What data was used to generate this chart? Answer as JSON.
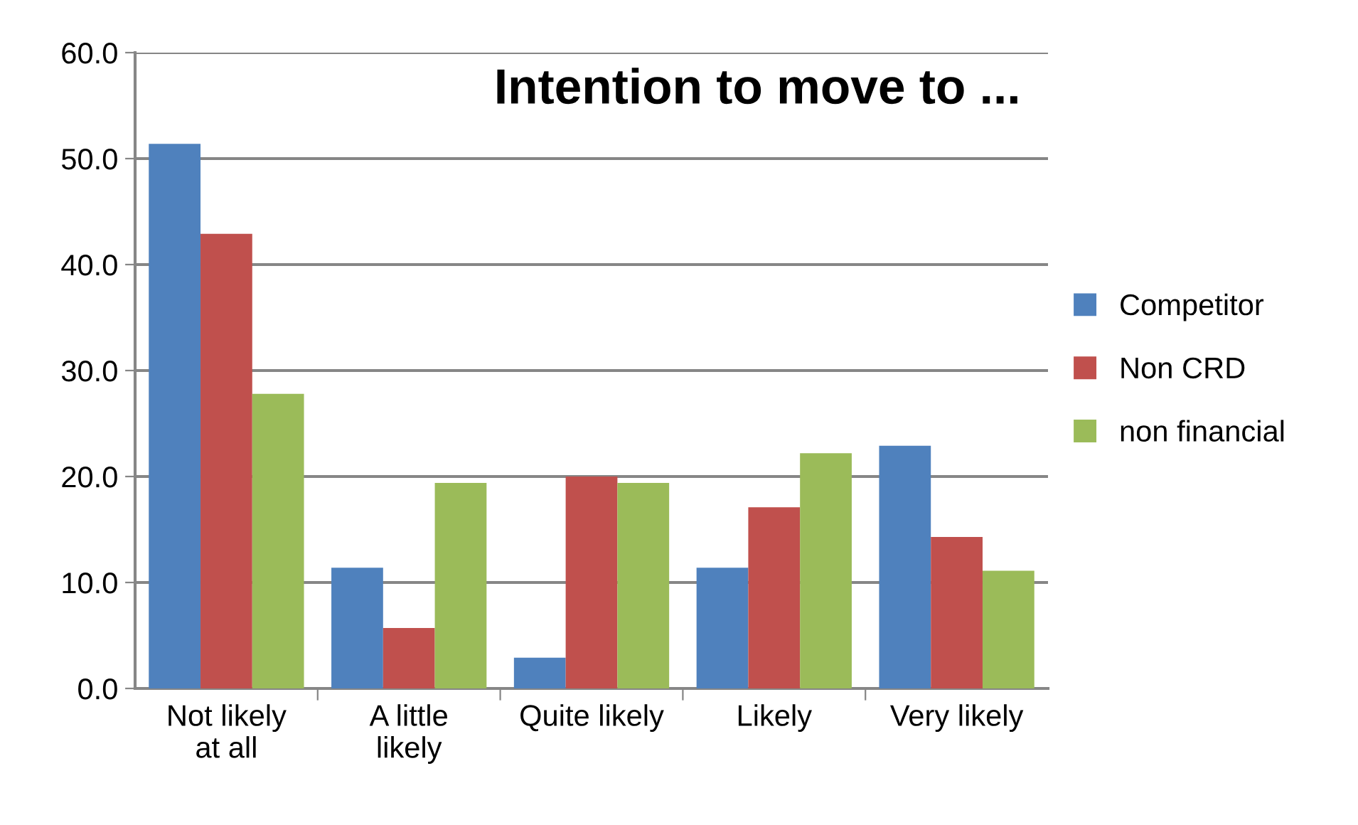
{
  "chart_data": {
    "type": "bar",
    "title": "Intention to move to ...",
    "categories": [
      "Not likely\nat all",
      "A little\nlikely",
      "Quite likely",
      "Likely",
      "Very likely"
    ],
    "series": [
      {
        "name": "Competitor",
        "color": "#4f81bd",
        "values": [
          51.4,
          11.4,
          2.9,
          11.4,
          22.9
        ]
      },
      {
        "name": "Non CRD",
        "color": "#c0504d",
        "values": [
          42.9,
          5.7,
          20.0,
          17.1,
          14.3
        ]
      },
      {
        "name": "non financial",
        "color": "#9bbb59",
        "values": [
          27.8,
          19.4,
          19.4,
          22.2,
          11.1
        ]
      }
    ],
    "ylim": [
      0,
      60
    ],
    "yticks": [
      {
        "value": 0,
        "label": "0.0"
      },
      {
        "value": 10,
        "label": "10.0"
      },
      {
        "value": 20,
        "label": "20.0"
      },
      {
        "value": 30,
        "label": "30.0"
      },
      {
        "value": 40,
        "label": "40.0"
      },
      {
        "value": 50,
        "label": "50.0"
      },
      {
        "value": 60,
        "label": "60.0"
      }
    ],
    "grid": "y",
    "legend": "right"
  }
}
